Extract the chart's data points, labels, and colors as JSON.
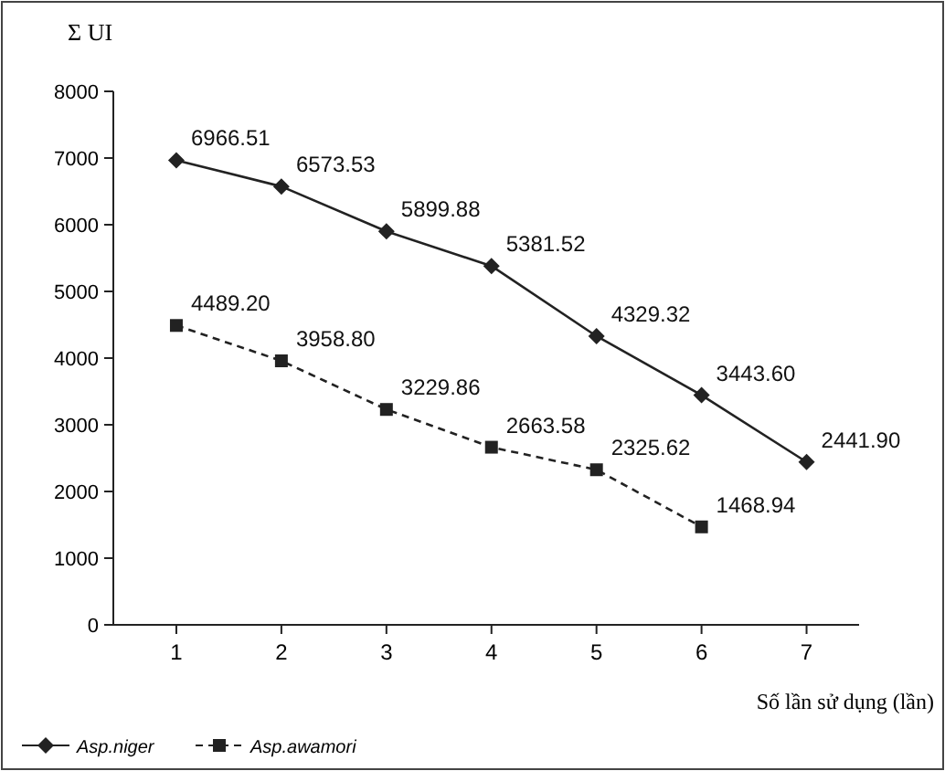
{
  "chart_data": {
    "type": "line",
    "ylabel": "Σ UI",
    "xlabel": "Số lần sử dụng (lần)",
    "x": [
      1,
      2,
      3,
      4,
      5,
      6,
      7
    ],
    "xlim": [
      0.4,
      7.5
    ],
    "xticks": [
      1,
      2,
      3,
      4,
      5,
      6,
      7
    ],
    "ylim": [
      0,
      8000
    ],
    "yticks": [
      0,
      1000,
      2000,
      3000,
      4000,
      5000,
      6000,
      7000,
      8000
    ],
    "grid": false,
    "legend": "bottom left",
    "series": [
      {
        "name": "Asp.niger",
        "color": "#222222",
        "marker": "diamond",
        "line_style": "solid",
        "values": [
          6966.51,
          6573.53,
          5899.88,
          5381.52,
          4329.32,
          3443.6,
          2441.9
        ],
        "value_labels": [
          "6966.51",
          "6573.53",
          "5899.88",
          "5381.52",
          "4329.32",
          "3443.60",
          "2441.90"
        ]
      },
      {
        "name": "Asp.awamori",
        "color": "#222222",
        "marker": "square",
        "line_style": "dashed",
        "x": [
          1,
          2,
          3,
          4,
          5,
          6
        ],
        "values": [
          4489.2,
          3958.8,
          3229.86,
          2663.58,
          2325.62,
          1468.94
        ],
        "value_labels": [
          "4489.20",
          "3958.80",
          "3229.86",
          "2663.58",
          "2325.62",
          "1468.94"
        ]
      }
    ]
  }
}
